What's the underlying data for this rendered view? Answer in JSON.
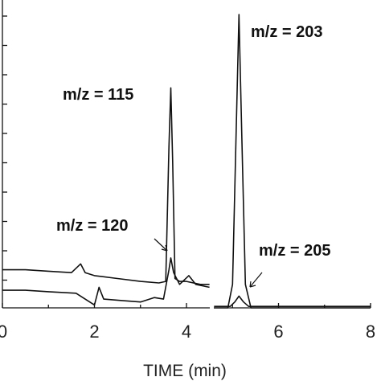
{
  "chart_data": {
    "type": "line",
    "xlabel": "TIME (min)",
    "xlim": [
      0,
      8
    ],
    "x_ticks": [
      "0",
      "2",
      "4",
      "6",
      "8"
    ],
    "ylabel": "",
    "grid": false,
    "series": [
      {
        "name": "m/z = 115",
        "points": [
          [
            0,
            0.13
          ],
          [
            0.5,
            0.13
          ],
          [
            1.0,
            0.125
          ],
          [
            1.5,
            0.12
          ],
          [
            1.7,
            0.15
          ],
          [
            1.8,
            0.12
          ],
          [
            2.0,
            0.11
          ],
          [
            2.5,
            0.1
          ],
          [
            3.0,
            0.09
          ],
          [
            3.4,
            0.085
          ],
          [
            3.55,
            0.09
          ],
          [
            3.62,
            0.55
          ],
          [
            3.66,
            0.75
          ],
          [
            3.7,
            0.5
          ],
          [
            3.75,
            0.1
          ],
          [
            3.85,
            0.09
          ],
          [
            4.0,
            0.09
          ],
          [
            4.3,
            0.08
          ],
          [
            4.5,
            0.08
          ]
        ]
      },
      {
        "name": "m/z = 120",
        "points": [
          [
            0,
            0.06
          ],
          [
            0.5,
            0.06
          ],
          [
            1.0,
            0.055
          ],
          [
            1.6,
            0.05
          ],
          [
            2.0,
            0.01
          ],
          [
            2.1,
            0.07
          ],
          [
            2.2,
            0.03
          ],
          [
            2.6,
            0.025
          ],
          [
            3.0,
            0.02
          ],
          [
            3.3,
            0.035
          ],
          [
            3.5,
            0.03
          ],
          [
            3.62,
            0.13
          ],
          [
            3.66,
            0.17
          ],
          [
            3.72,
            0.12
          ],
          [
            3.85,
            0.08
          ],
          [
            4.05,
            0.11
          ],
          [
            4.2,
            0.08
          ],
          [
            4.5,
            0.07
          ]
        ]
      },
      {
        "name": "m/z = 203",
        "points": [
          [
            4.6,
            0.0
          ],
          [
            4.9,
            0.0
          ],
          [
            5.0,
            0.08
          ],
          [
            5.08,
            0.6
          ],
          [
            5.14,
            1.0
          ],
          [
            5.2,
            0.6
          ],
          [
            5.28,
            0.08
          ],
          [
            5.4,
            0.0
          ],
          [
            6.0,
            0.0
          ],
          [
            7.0,
            0.0
          ],
          [
            8.0,
            0.0
          ]
        ]
      },
      {
        "name": "m/z = 205",
        "points": [
          [
            4.6,
            0.005
          ],
          [
            4.95,
            0.005
          ],
          [
            5.05,
            0.02
          ],
          [
            5.14,
            0.04
          ],
          [
            5.24,
            0.02
          ],
          [
            5.35,
            0.005
          ],
          [
            6.0,
            0.005
          ],
          [
            7.0,
            0.005
          ],
          [
            8.0,
            0.005
          ]
        ]
      }
    ],
    "annotations": [
      {
        "text": "m/z = 203"
      },
      {
        "text": "m/z = 115"
      },
      {
        "text": "m/z = 120"
      },
      {
        "text": "m/z = 205"
      }
    ]
  }
}
